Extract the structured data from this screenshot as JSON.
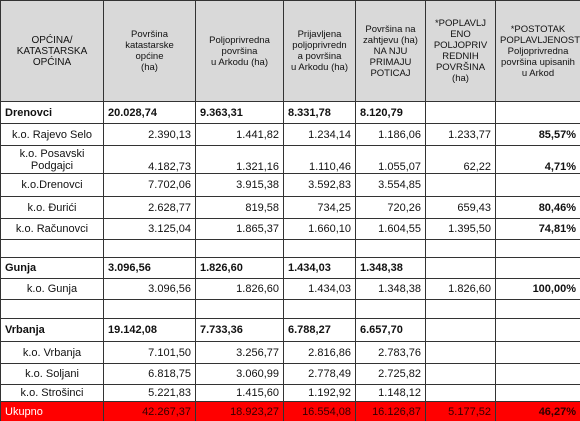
{
  "table": {
    "header": [
      "OPĆINA/\nKATASTARSKA\nOPĆINA",
      "Površina\nkatastarske\nopćine\n(ha)",
      "Poljoprivredna\npovršina\nu Arkodu (ha)",
      "Prijavljena\npoljoprivredn\na površina\nu Arkodu (ha)",
      "Površina na\nzahtjevu (ha)\nNA NJU\nPRIMAJU\nPOTICAJ",
      "*POPLAVLJ\nENO\nPOLJOPRIV\nREDNIH\nPOVRŠINA\n(ha)",
      "*POSTOTAK\nPOPLAVLJENOSTI\nPoljoprivredna\npovršina upisanih\nu Arkod"
    ],
    "groups": [
      {
        "row": [
          "Drenovci",
          "20.028,74",
          "9.363,31",
          "8.331,78",
          "8.120,79",
          null,
          null
        ],
        "rows": [
          [
            "k.o. Rajevo Selo",
            "2.390,13",
            "1.441,82",
            "1.234,14",
            "1.186,06",
            "1.233,77",
            "85,57%"
          ],
          [
            "k.o. Posavski\nPodgajci",
            "4.182,73",
            "1.321,16",
            "1.110,46",
            "1.055,07",
            "62,22",
            "4,71%"
          ],
          [
            "k.o.Drenovci",
            "7.702,06",
            "3.915,38",
            "3.592,83",
            "3.554,85",
            null,
            null
          ],
          [
            "k.o. Đurići",
            "2.628,77",
            "819,58",
            "734,25",
            "720,26",
            "659,43",
            "80,46%"
          ],
          [
            "k.o. Računovci",
            "3.125,04",
            "1.865,37",
            "1.660,10",
            "1.604,55",
            "1.395,50",
            "74,81%"
          ]
        ]
      },
      {
        "row": [
          "Gunja",
          "3.096,56",
          "1.826,60",
          "1.434,03",
          "1.348,38",
          null,
          null
        ],
        "rows": [
          [
            "k.o. Gunja",
            "3.096,56",
            "1.826,60",
            "1.434,03",
            "1.348,38",
            "1.826,60",
            "100,00%"
          ]
        ]
      },
      {
        "row": [
          "Vrbanja",
          "19.142,08",
          "7.733,36",
          "6.788,27",
          "6.657,70",
          null,
          null
        ],
        "rows": [
          [
            "k.o. Vrbanja",
            "7.101,50",
            "3.256,77",
            "2.816,86",
            "2.783,76",
            null,
            null
          ],
          [
            "k.o. Soljani",
            "6.818,75",
            "3.060,99",
            "2.778,49",
            "2.725,82",
            null,
            null
          ],
          [
            "k.o. Strošinci",
            "5.221,83",
            "1.415,60",
            "1.192,92",
            "1.148,12",
            null,
            null
          ]
        ]
      }
    ],
    "total": [
      "Ukupno",
      "42.267,37",
      "18.923,27",
      "16.554,08",
      "16.126,87",
      "5.177,52",
      "46,27%"
    ]
  }
}
